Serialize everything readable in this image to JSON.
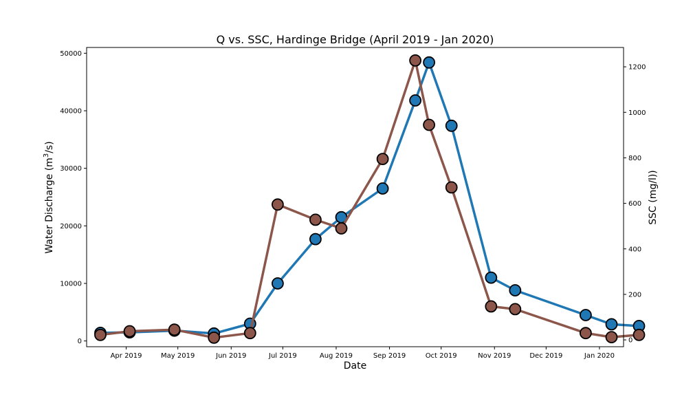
{
  "chart_data": {
    "type": "line",
    "title": "Q vs. SSC, Hardinge Bridge (April 2019 - Jan 2020)",
    "xlabel": "Date",
    "ylabel_left": "Water Discharge (m",
    "ylabel_left_sup": "3",
    "ylabel_left_tail": "/s)",
    "ylabel_right": "SSC (mg/l))",
    "x_ticks": [
      {
        "date": "2019-04-01",
        "label": "Apr 2019"
      },
      {
        "date": "2019-05-01",
        "label": "May 2019"
      },
      {
        "date": "2019-06-01",
        "label": "Jun 2019"
      },
      {
        "date": "2019-07-01",
        "label": "Jul 2019"
      },
      {
        "date": "2019-08-01",
        "label": "Aug 2019"
      },
      {
        "date": "2019-09-01",
        "label": "Sep 2019"
      },
      {
        "date": "2019-10-01",
        "label": "Oct 2019"
      },
      {
        "date": "2019-11-01",
        "label": "Nov 2019"
      },
      {
        "date": "2019-12-01",
        "label": "Dec 2019"
      },
      {
        "date": "2020-01-01",
        "label": "Jan 2020"
      }
    ],
    "y_left_ticks": [
      {
        "value": 0,
        "label": "0"
      },
      {
        "value": 10000,
        "label": "10000"
      },
      {
        "value": 20000,
        "label": "20000"
      },
      {
        "value": 30000,
        "label": "30000"
      },
      {
        "value": 40000,
        "label": "40000"
      },
      {
        "value": 50000,
        "label": "50000"
      }
    ],
    "y_right_ticks": [
      {
        "value": 0,
        "label": "0"
      },
      {
        "value": 200,
        "label": "200"
      },
      {
        "value": 400,
        "label": "400"
      },
      {
        "value": 600,
        "label": "600"
      },
      {
        "value": 800,
        "label": "800"
      },
      {
        "value": 1000,
        "label": "1000"
      },
      {
        "value": 1200,
        "label": "1200"
      }
    ],
    "xlim": [
      "2019-03-09",
      "2020-01-15"
    ],
    "ylim_left": [
      -1000,
      51000
    ],
    "ylim_right": [
      -30,
      1285
    ],
    "grid": false,
    "series": [
      {
        "axis": "left",
        "color": "#1f77b4",
        "points": [
          {
            "x": "2019-03-17",
            "y": 1400
          },
          {
            "x": "2019-04-03",
            "y": 1500
          },
          {
            "x": "2019-04-29",
            "y": 1800
          },
          {
            "x": "2019-05-22",
            "y": 1300
          },
          {
            "x": "2019-06-12",
            "y": 3000
          },
          {
            "x": "2019-06-28",
            "y": 10000
          },
          {
            "x": "2019-07-20",
            "y": 17700
          },
          {
            "x": "2019-08-04",
            "y": 21500
          },
          {
            "x": "2019-08-28",
            "y": 26500
          },
          {
            "x": "2019-09-16",
            "y": 41800
          },
          {
            "x": "2019-09-24",
            "y": 48400
          },
          {
            "x": "2019-10-07",
            "y": 37400
          },
          {
            "x": "2019-10-30",
            "y": 11000
          },
          {
            "x": "2019-11-13",
            "y": 8800
          },
          {
            "x": "2019-12-24",
            "y": 4500
          },
          {
            "x": "2020-01-08",
            "y": 2900
          },
          {
            "x": "2020-01-24",
            "y": 2600
          }
        ]
      },
      {
        "axis": "right",
        "color": "#8c564b",
        "points": [
          {
            "x": "2019-03-17",
            "y": 22
          },
          {
            "x": "2019-04-03",
            "y": 38
          },
          {
            "x": "2019-04-29",
            "y": 45
          },
          {
            "x": "2019-05-22",
            "y": 10
          },
          {
            "x": "2019-06-12",
            "y": 30
          },
          {
            "x": "2019-06-28",
            "y": 595
          },
          {
            "x": "2019-07-20",
            "y": 528
          },
          {
            "x": "2019-08-04",
            "y": 490
          },
          {
            "x": "2019-08-28",
            "y": 795
          },
          {
            "x": "2019-09-16",
            "y": 1228
          },
          {
            "x": "2019-09-24",
            "y": 945
          },
          {
            "x": "2019-10-07",
            "y": 670
          },
          {
            "x": "2019-10-30",
            "y": 147
          },
          {
            "x": "2019-11-13",
            "y": 135
          },
          {
            "x": "2019-12-24",
            "y": 30
          },
          {
            "x": "2020-01-08",
            "y": 12
          },
          {
            "x": "2020-01-24",
            "y": 22
          }
        ]
      }
    ]
  }
}
